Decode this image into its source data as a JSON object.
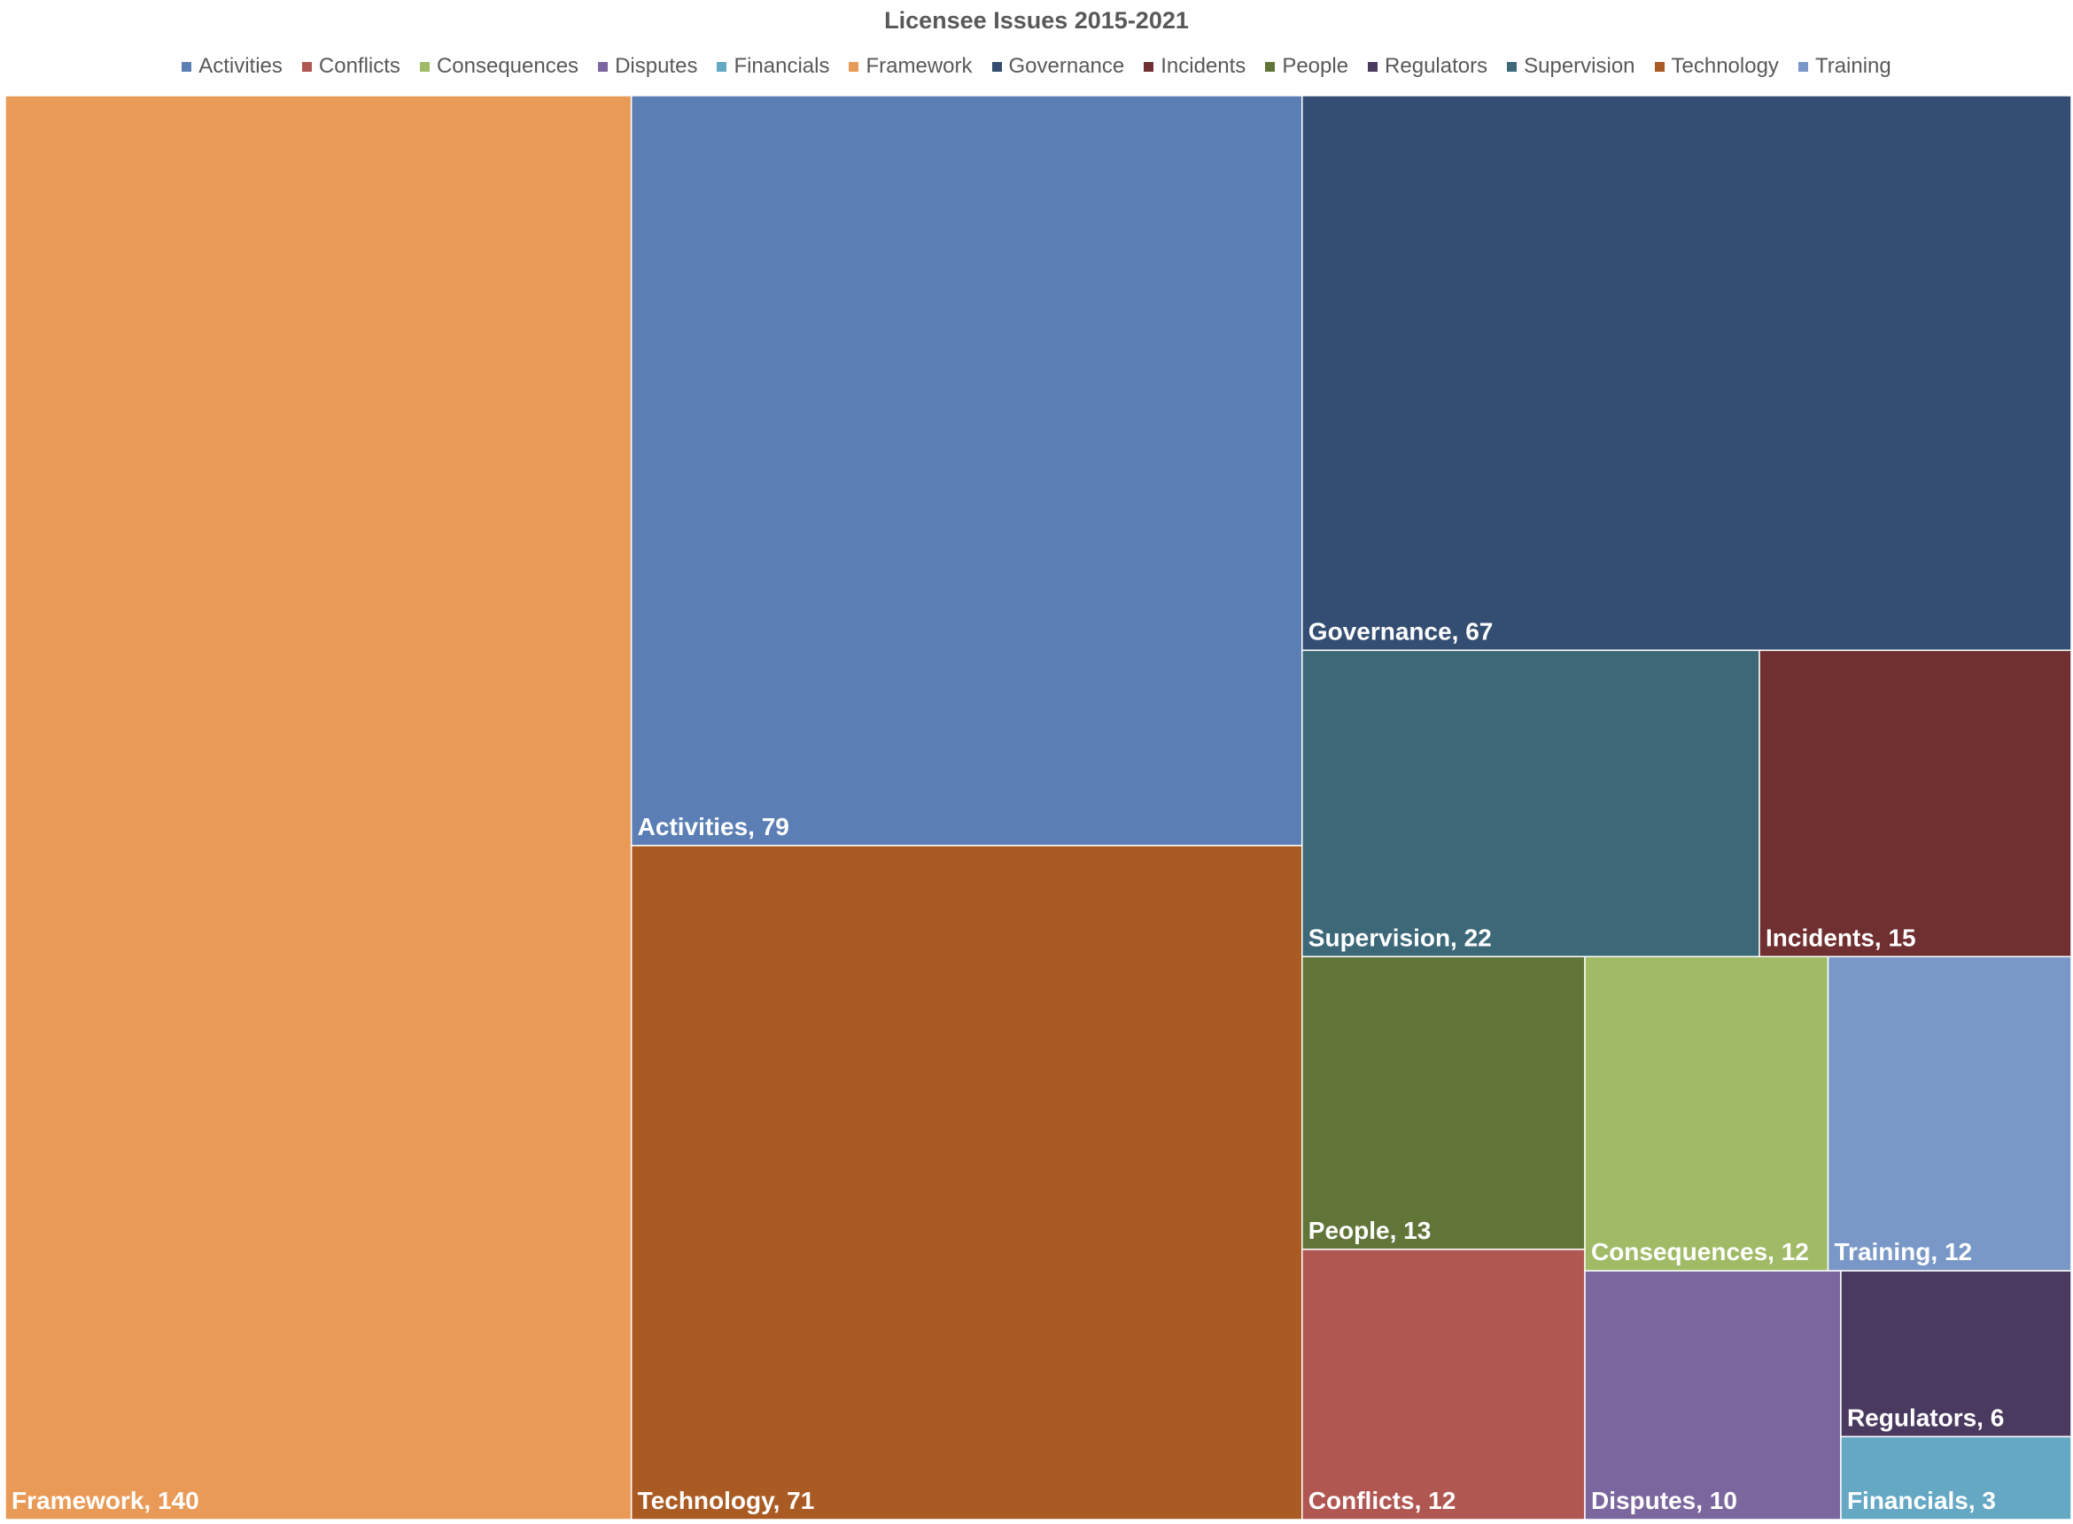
{
  "chart_data": {
    "type": "treemap",
    "title": "Licensee Issues 2015-2021",
    "legend_position": "top",
    "categories": [
      "Activities",
      "Conflicts",
      "Consequences",
      "Disputes",
      "Financials",
      "Framework",
      "Governance",
      "Incidents",
      "People",
      "Regulators",
      "Supervision",
      "Technology",
      "Training"
    ],
    "values": [
      79,
      12,
      12,
      10,
      3,
      140,
      67,
      15,
      13,
      6,
      22,
      71,
      12
    ],
    "colors": {
      "Activities": "#5b7fb5",
      "Conflicts": "#b15752",
      "Consequences": "#a0ba65",
      "Disputes": "#7b679d",
      "Financials": "#65a8c4",
      "Framework": "#e99a57",
      "Governance": "#334e72",
      "Incidents": "#702f30",
      "People": "#627539",
      "Regulators": "#4a3a5f",
      "Supervision": "#3c6878",
      "Technology": "#aa5b23",
      "Training": "#7a98c7"
    }
  }
}
